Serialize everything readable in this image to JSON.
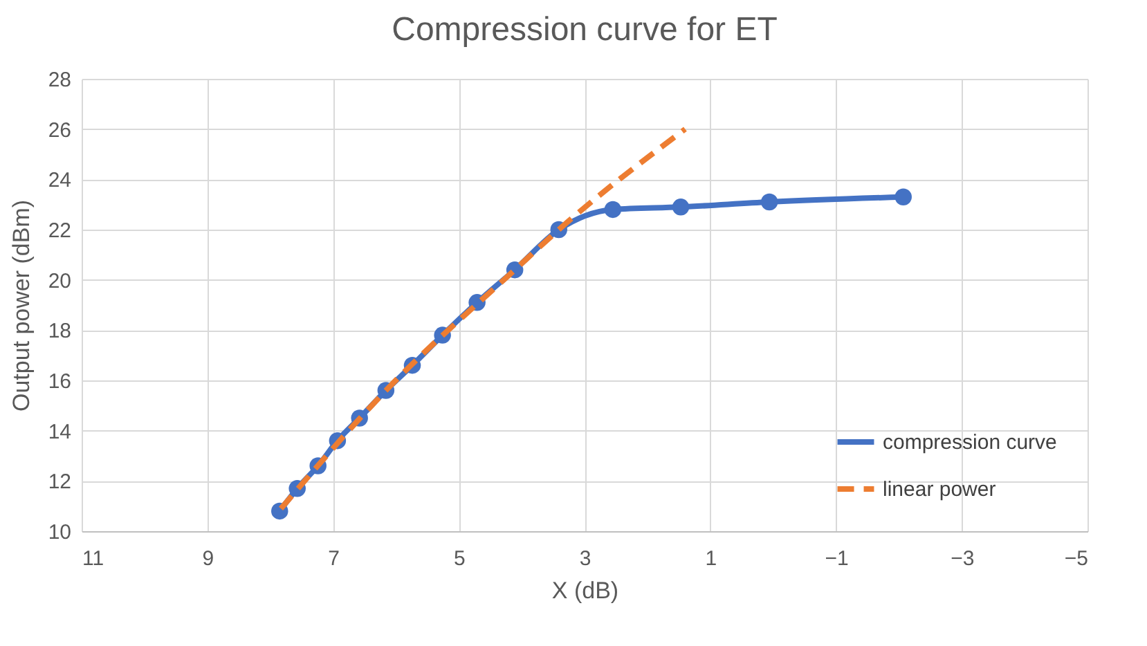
{
  "chart_data": {
    "type": "line",
    "title": "Compression curve for ET",
    "xlabel": "X (dB)",
    "ylabel": "Output power (dBm)",
    "xlim": [
      11,
      -5
    ],
    "xticks": [
      11,
      9,
      7,
      5,
      3,
      1,
      -1,
      -3,
      -5
    ],
    "ylim": [
      10,
      28
    ],
    "yticks": [
      10,
      12,
      14,
      16,
      18,
      20,
      22,
      24,
      26,
      28
    ],
    "grid": true,
    "legend": "bottom right",
    "series": [
      {
        "name": "compression curve",
        "color": "#4472c4",
        "marker": "circle",
        "line_style": "solid",
        "x": [
          7.85,
          7.57,
          7.24,
          6.93,
          6.58,
          6.16,
          5.74,
          5.26,
          4.71,
          4.11,
          3.41,
          2.55,
          1.47,
          0.06,
          -2.07
        ],
        "values": [
          10.8,
          11.7,
          12.6,
          13.6,
          14.5,
          15.6,
          16.6,
          17.8,
          19.1,
          20.4,
          22.0,
          22.8,
          22.9,
          23.1,
          23.3
        ]
      },
      {
        "name": "linear power",
        "color": "#ed7d31",
        "marker": "none",
        "line_style": "dashed",
        "x": [
          7.83,
          6.16,
          4.11,
          3.41,
          1.4
        ],
        "values": [
          10.9,
          15.6,
          20.4,
          22.0,
          26.0
        ]
      }
    ]
  }
}
